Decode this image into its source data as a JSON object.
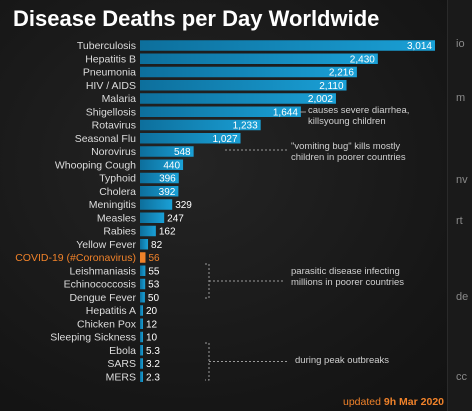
{
  "chart_data": {
    "type": "bar",
    "orientation": "horizontal",
    "title": "Disease Deaths per Day Worldwide",
    "categories": [
      "Tuberculosis",
      "Hepatitis B",
      "Pneumonia",
      "HIV / AIDS",
      "Malaria",
      "Shigellosis",
      "Rotavirus",
      "Seasonal Flu",
      "Norovirus",
      "Whooping Cough",
      "Typhoid",
      "Cholera",
      "Meningitis",
      "Measles",
      "Rabies",
      "Yellow Fever",
      "COVID-19 (#Coronavirus)",
      "Leishmaniasis",
      "Echinococcosis",
      "Dengue Fever",
      "Hepatitis A",
      "Chicken Pox",
      "Sleeping Sickness",
      "Ebola",
      "SARS",
      "MERS"
    ],
    "values": [
      3014,
      2430,
      2216,
      2110,
      2002,
      1644,
      1233,
      1027,
      548,
      440,
      396,
      392,
      329,
      247,
      162,
      82,
      56,
      55,
      53,
      50,
      20,
      12,
      10,
      5.3,
      3.2,
      2.3
    ],
    "value_labels": [
      "3,014",
      "2,430",
      "2,216",
      "2,110",
      "2,002",
      "1,644",
      "1,233",
      "1,027",
      "548",
      "440",
      "396",
      "392",
      "329",
      "247",
      "162",
      "82",
      "56",
      "55",
      "53",
      "50",
      "20",
      "12",
      "10",
      "5.3",
      "3.2",
      "2.3"
    ],
    "highlight_category": "COVID-19 (#Coronavirus)",
    "annotations": [
      {
        "text": [
          "causes severe diarrhea,",
          "killsyoung children"
        ]
      },
      {
        "text": [
          "\"vomiting bug\" kills mostly",
          "children in poorer countries"
        ]
      },
      {
        "text": [
          "parasitic disease infecting",
          "millions in poorer countries"
        ]
      },
      {
        "text": [
          "during peak outbreaks"
        ]
      }
    ],
    "footer": {
      "prefix": "updated ",
      "value": "9h Mar 2020"
    },
    "colors": {
      "bar": "#1aa0d6",
      "bar_dark": "#0d6f9c",
      "highlight": "#f0822a",
      "text": "#dcdcdc",
      "background": "#1b1b1b"
    },
    "grid": false,
    "legend": "none"
  },
  "edge_glyphs": [
    "io",
    "m",
    "nv",
    "rt",
    "de",
    "cc"
  ]
}
